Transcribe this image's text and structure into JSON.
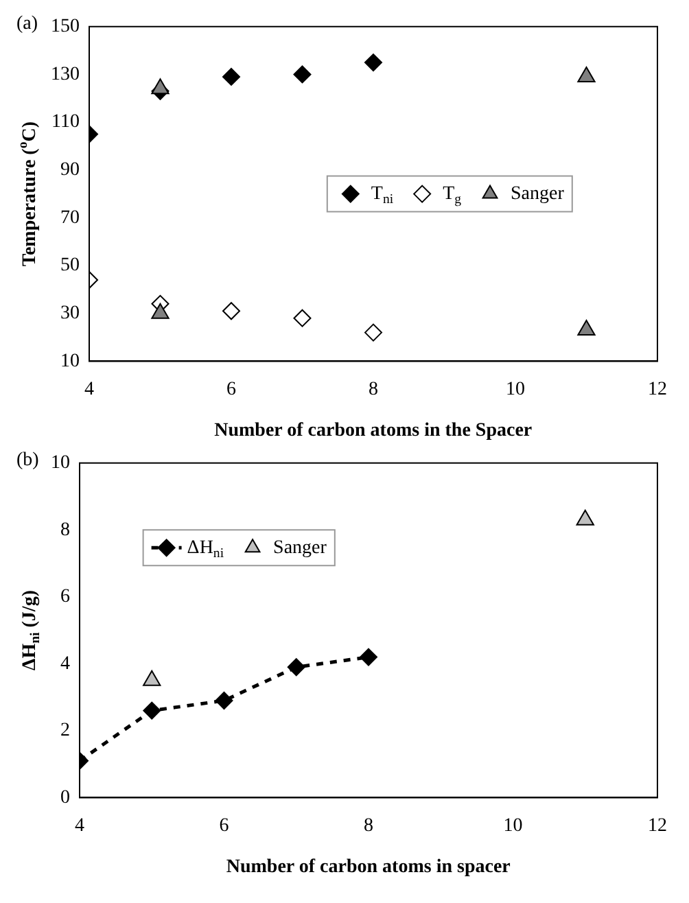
{
  "chart_data": [
    {
      "type": "scatter",
      "title": "(a)",
      "xlabel": "Number of carbon atoms in the Spacer",
      "ylabel": "Temperature ($^{o}$C)",
      "x": [
        4,
        5,
        6,
        7,
        8
      ],
      "series": [
        {
          "name": "T$_{ni}$",
          "color": "#000000",
          "marker": "diamond",
          "values": [
            105,
            123,
            129,
            130,
            135
          ]
        },
        {
          "name": "T$_{g}$",
          "color": "#ffffff",
          "marker": "diamond",
          "values": [
            44,
            34,
            31,
            28,
            22
          ]
        },
        {
          "name": "Sanger",
          "color": "#808080",
          "marker": "triangle",
          "x": [
            5,
            5,
            11,
            11
          ],
          "values": [
            124,
            30,
            129,
            23
          ]
        }
      ],
      "xlim": [
        4,
        12
      ],
      "xticks": [
        4,
        6,
        8,
        10,
        12
      ],
      "ylim": [
        10,
        150
      ],
      "yticks": [
        10,
        30,
        50,
        70,
        90,
        110,
        130,
        150
      ],
      "grid": false,
      "legend": "right"
    },
    {
      "type": "scatter",
      "title": "(b)",
      "xlabel": "Number of carbon atoms in spacer",
      "ylabel": "ΔH$_{ni}$ (J/g)",
      "series": [
        {
          "name": "ΔH$_{ni}$",
          "type": "line",
          "line_style": "dashed",
          "color": "#000000",
          "marker": "diamond",
          "x": [
            4,
            5,
            6,
            7,
            8
          ],
          "values": [
            1.1,
            2.6,
            2.9,
            3.9,
            4.2
          ]
        },
        {
          "name": "Sanger",
          "color": "#c0c0c0",
          "marker": "triangle",
          "x": [
            5,
            11
          ],
          "values": [
            3.5,
            8.3
          ]
        }
      ],
      "xlim": [
        4,
        12
      ],
      "xticks": [
        4,
        6,
        8,
        10,
        12
      ],
      "ylim": [
        0,
        10
      ],
      "yticks": [
        0,
        2,
        4,
        6,
        8,
        10
      ],
      "grid": false,
      "legend": "top left"
    }
  ]
}
